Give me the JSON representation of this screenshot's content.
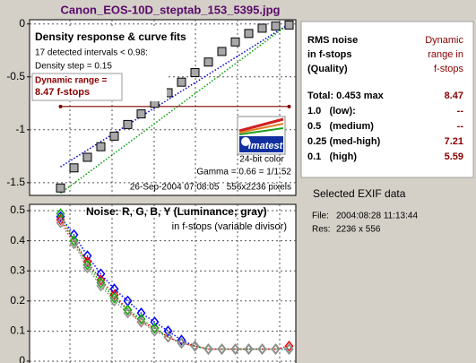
{
  "title": "Canon_EOS-10D_steptab_153_5395.jpg",
  "chart_data": [
    {
      "type": "line",
      "title": "Density response & curve fits",
      "annotations": [
        "17 detected intervals < 0.98:",
        "Density step = 0.15",
        "Dynamic range =",
        "8.47 f-stops",
        "24-bit color",
        "Gamma = 0.66 = 1/1.52",
        "26-Sep-2004 07:08:05   556x2236 pixels"
      ],
      "x": [
        1,
        2,
        3,
        4,
        5,
        6,
        7,
        8,
        9,
        10,
        11,
        12,
        13,
        14,
        15,
        16,
        17,
        18
      ],
      "xlim": [
        -1.3,
        18.5
      ],
      "ylim": [
        -1.62,
        0.04
      ],
      "yticks": [
        0,
        -0.5,
        -1,
        -1.5
      ],
      "grid": true,
      "series": [
        {
          "color": "#0000cc",
          "style": "dotted",
          "x": [
            1,
            18
          ],
          "values": [
            -1.35,
            0
          ]
        },
        {
          "color": "#00a000",
          "style": "dotted",
          "x": [
            1,
            18
          ],
          "values": [
            -1.6,
            0
          ]
        },
        {
          "color": "#800000",
          "style": "solid",
          "marker": "dot",
          "x": [
            1,
            18
          ],
          "values": [
            -0.78,
            -0.78
          ]
        },
        {
          "color": "#a8a8a8",
          "style": "none",
          "marker": "square",
          "values": [
            -1.55,
            -1.36,
            -1.26,
            -1.16,
            -1.06,
            -0.95,
            -0.85,
            -0.75,
            -0.65,
            -0.55,
            -0.46,
            -0.36,
            -0.26,
            -0.17,
            -0.09,
            -0.04,
            -0.02,
            -0.01
          ]
        }
      ]
    },
    {
      "type": "line",
      "title": "Noise: R, G, B, Y (Luminance; gray)",
      "subtitle": "in f-stops (variable divisor)",
      "x": [
        1,
        2,
        3,
        4,
        5,
        6,
        7,
        8,
        9,
        10,
        11,
        12,
        13,
        14,
        15,
        16,
        17,
        18
      ],
      "xlim": [
        -1.3,
        18.5
      ],
      "ylim": [
        -0.015,
        0.521
      ],
      "yticks": [
        0,
        0.1,
        0.2,
        0.3,
        0.4,
        0.5
      ],
      "grid": true,
      "series": [
        {
          "color": "#0000ff",
          "style": "dotted",
          "marker": "diamond",
          "values": [
            0.48,
            0.42,
            0.35,
            0.29,
            0.24,
            0.2,
            0.16,
            0.13,
            0.1,
            0.07,
            0.05,
            0.04,
            0.04,
            0.04,
            0.04,
            0.04,
            0.04,
            0.04
          ]
        },
        {
          "color": "#ff0000",
          "style": "dotted",
          "marker": "diamond",
          "values": [
            0.47,
            0.4,
            0.33,
            0.27,
            0.22,
            0.17,
            0.13,
            0.11,
            0.08,
            0.06,
            0.05,
            0.04,
            0.04,
            0.04,
            0.04,
            0.04,
            0.04,
            0.05
          ]
        },
        {
          "color": "#00b000",
          "style": "dotted",
          "marker": "diamond",
          "values": [
            0.49,
            0.4,
            0.32,
            0.26,
            0.21,
            0.17,
            0.14,
            0.11,
            0.08,
            0.06,
            0.05,
            0.04,
            0.04,
            0.04,
            0.04,
            0.04,
            0.04,
            0.04
          ]
        },
        {
          "color": "#909090",
          "style": "dotted",
          "marker": "diamond",
          "values": [
            0.46,
            0.39,
            0.31,
            0.25,
            0.2,
            0.16,
            0.13,
            0.1,
            0.08,
            0.06,
            0.05,
            0.04,
            0.04,
            0.04,
            0.04,
            0.04,
            0.04,
            0.04
          ]
        }
      ]
    }
  ],
  "results": {
    "header_left": [
      "RMS noise",
      "in f-stops",
      "(Quality)"
    ],
    "header_right": [
      "Dynamic",
      "range in",
      "f-stops"
    ],
    "rows": [
      [
        "Total: 0.453 max",
        "8.47"
      ],
      [
        "1.0   (low):",
        "--"
      ],
      [
        "0.5   (medium)",
        "--"
      ],
      [
        "0.25 (med-high)",
        "7.21"
      ],
      [
        "0.1   (high)",
        "5.59"
      ]
    ]
  },
  "exif": {
    "title": "Selected EXIF data",
    "rows": [
      [
        "File:",
        "2004:08:28 11:13:44"
      ],
      [
        "Res:",
        "2236 x 556"
      ]
    ]
  },
  "logo": "Imatest"
}
